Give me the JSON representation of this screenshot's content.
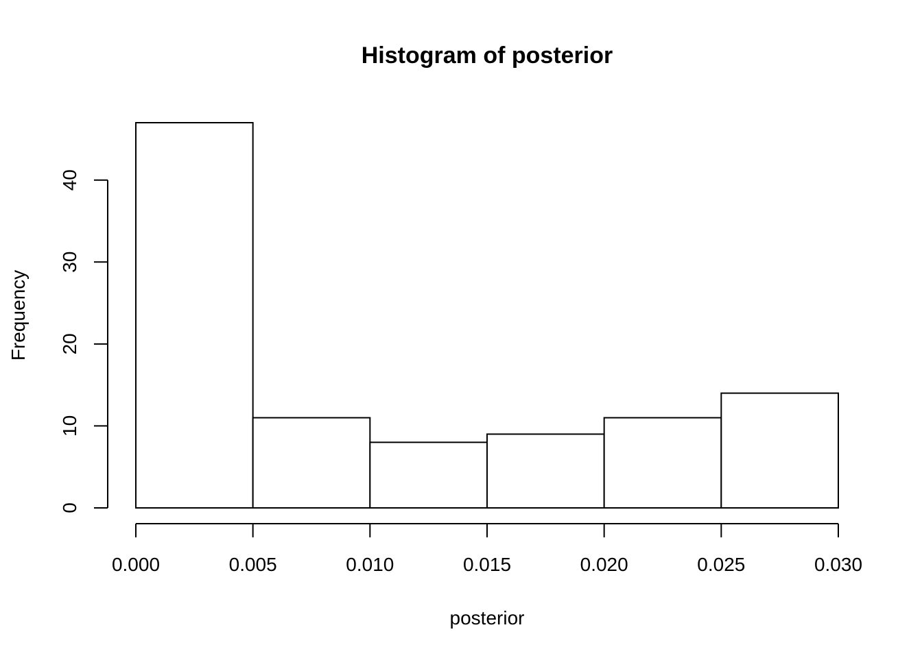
{
  "chart_data": {
    "type": "bar",
    "title": "Histogram of posterior",
    "xlabel": "posterior",
    "ylabel": "Frequency",
    "xlim": [
      0,
      0.03
    ],
    "ylim": [
      0,
      47
    ],
    "bins": [
      {
        "start": 0.0,
        "end": 0.005,
        "count": 47
      },
      {
        "start": 0.005,
        "end": 0.01,
        "count": 11
      },
      {
        "start": 0.01,
        "end": 0.015,
        "count": 8
      },
      {
        "start": 0.015,
        "end": 0.02,
        "count": 9
      },
      {
        "start": 0.02,
        "end": 0.025,
        "count": 11
      },
      {
        "start": 0.025,
        "end": 0.03,
        "count": 14
      }
    ],
    "x_ticks": [
      0.0,
      0.005,
      0.01,
      0.015,
      0.02,
      0.025,
      0.03
    ],
    "x_tick_labels": [
      "0.000",
      "0.005",
      "0.010",
      "0.015",
      "0.020",
      "0.025",
      "0.030"
    ],
    "y_ticks": [
      0,
      10,
      20,
      30,
      40
    ],
    "y_tick_labels": [
      "0",
      "10",
      "20",
      "30",
      "40"
    ],
    "grid": false,
    "bar_fill": "#ffffff",
    "bar_stroke": "#000000"
  }
}
